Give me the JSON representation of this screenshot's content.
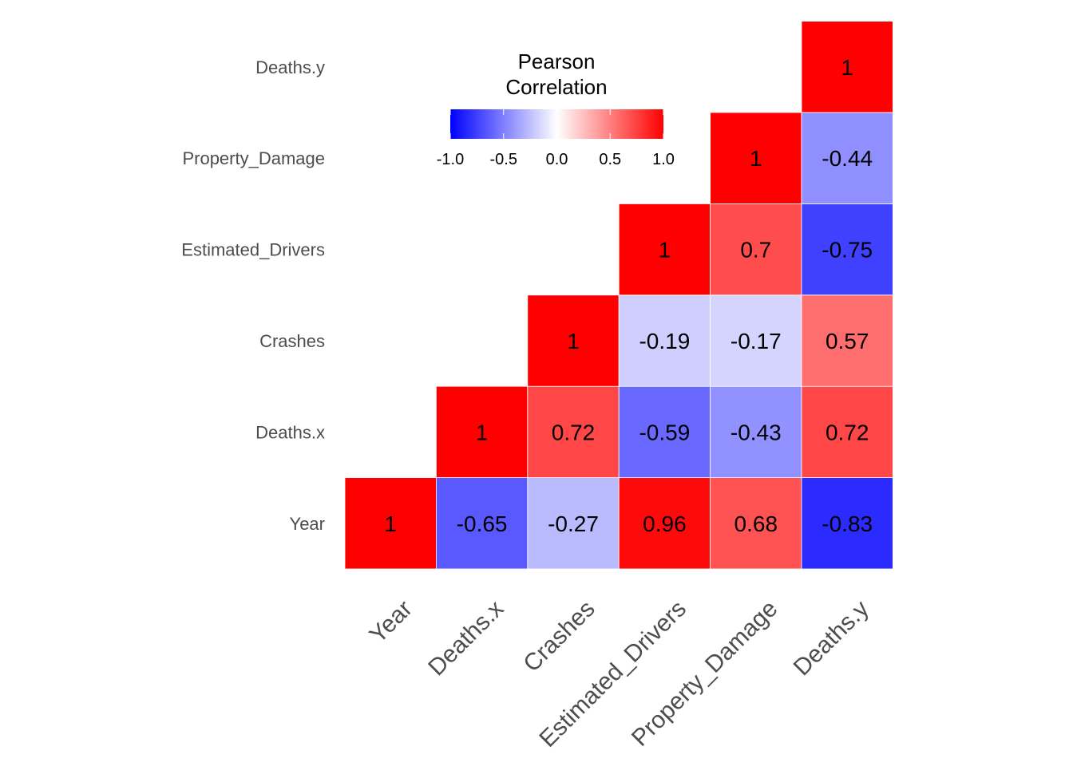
{
  "chart_data": {
    "type": "heatmap",
    "variables": [
      "Year",
      "Deaths.x",
      "Crashes",
      "Estimated_Drivers",
      "Property_Damage",
      "Deaths.y"
    ],
    "cells": [
      {
        "x": "Year",
        "y": "Year",
        "value": 1,
        "label": "1"
      },
      {
        "x": "Deaths.x",
        "y": "Year",
        "value": -0.65,
        "label": "-0.65"
      },
      {
        "x": "Crashes",
        "y": "Year",
        "value": -0.27,
        "label": "-0.27"
      },
      {
        "x": "Estimated_Drivers",
        "y": "Year",
        "value": 0.96,
        "label": "0.96"
      },
      {
        "x": "Property_Damage",
        "y": "Year",
        "value": 0.68,
        "label": "0.68"
      },
      {
        "x": "Deaths.y",
        "y": "Year",
        "value": -0.83,
        "label": "-0.83"
      },
      {
        "x": "Deaths.x",
        "y": "Deaths.x",
        "value": 1,
        "label": "1"
      },
      {
        "x": "Crashes",
        "y": "Deaths.x",
        "value": 0.72,
        "label": "0.72"
      },
      {
        "x": "Estimated_Drivers",
        "y": "Deaths.x",
        "value": -0.59,
        "label": "-0.59"
      },
      {
        "x": "Property_Damage",
        "y": "Deaths.x",
        "value": -0.43,
        "label": "-0.43"
      },
      {
        "x": "Deaths.y",
        "y": "Deaths.x",
        "value": 0.72,
        "label": "0.72"
      },
      {
        "x": "Crashes",
        "y": "Crashes",
        "value": 1,
        "label": "1"
      },
      {
        "x": "Estimated_Drivers",
        "y": "Crashes",
        "value": -0.19,
        "label": "-0.19"
      },
      {
        "x": "Property_Damage",
        "y": "Crashes",
        "value": -0.17,
        "label": "-0.17"
      },
      {
        "x": "Deaths.y",
        "y": "Crashes",
        "value": 0.57,
        "label": "0.57"
      },
      {
        "x": "Estimated_Drivers",
        "y": "Estimated_Drivers",
        "value": 1,
        "label": "1"
      },
      {
        "x": "Property_Damage",
        "y": "Estimated_Drivers",
        "value": 0.7,
        "label": "0.7"
      },
      {
        "x": "Deaths.y",
        "y": "Estimated_Drivers",
        "value": -0.75,
        "label": "-0.75"
      },
      {
        "x": "Property_Damage",
        "y": "Property_Damage",
        "value": 1,
        "label": "1"
      },
      {
        "x": "Deaths.y",
        "y": "Property_Damage",
        "value": -0.44,
        "label": "-0.44"
      },
      {
        "x": "Deaths.y",
        "y": "Deaths.y",
        "value": 1,
        "label": "1"
      }
    ],
    "legend": {
      "title_line1": "Pearson",
      "title_line2": "Correlation",
      "ticks": [
        "-1.0",
        "-0.5",
        "0.0",
        "0.5",
        "1.0"
      ],
      "range": [
        -1,
        1
      ],
      "placement": "top-center"
    },
    "colors": {
      "low": "#0000ff",
      "mid": "#ffffff",
      "high": "#ff0000"
    }
  }
}
